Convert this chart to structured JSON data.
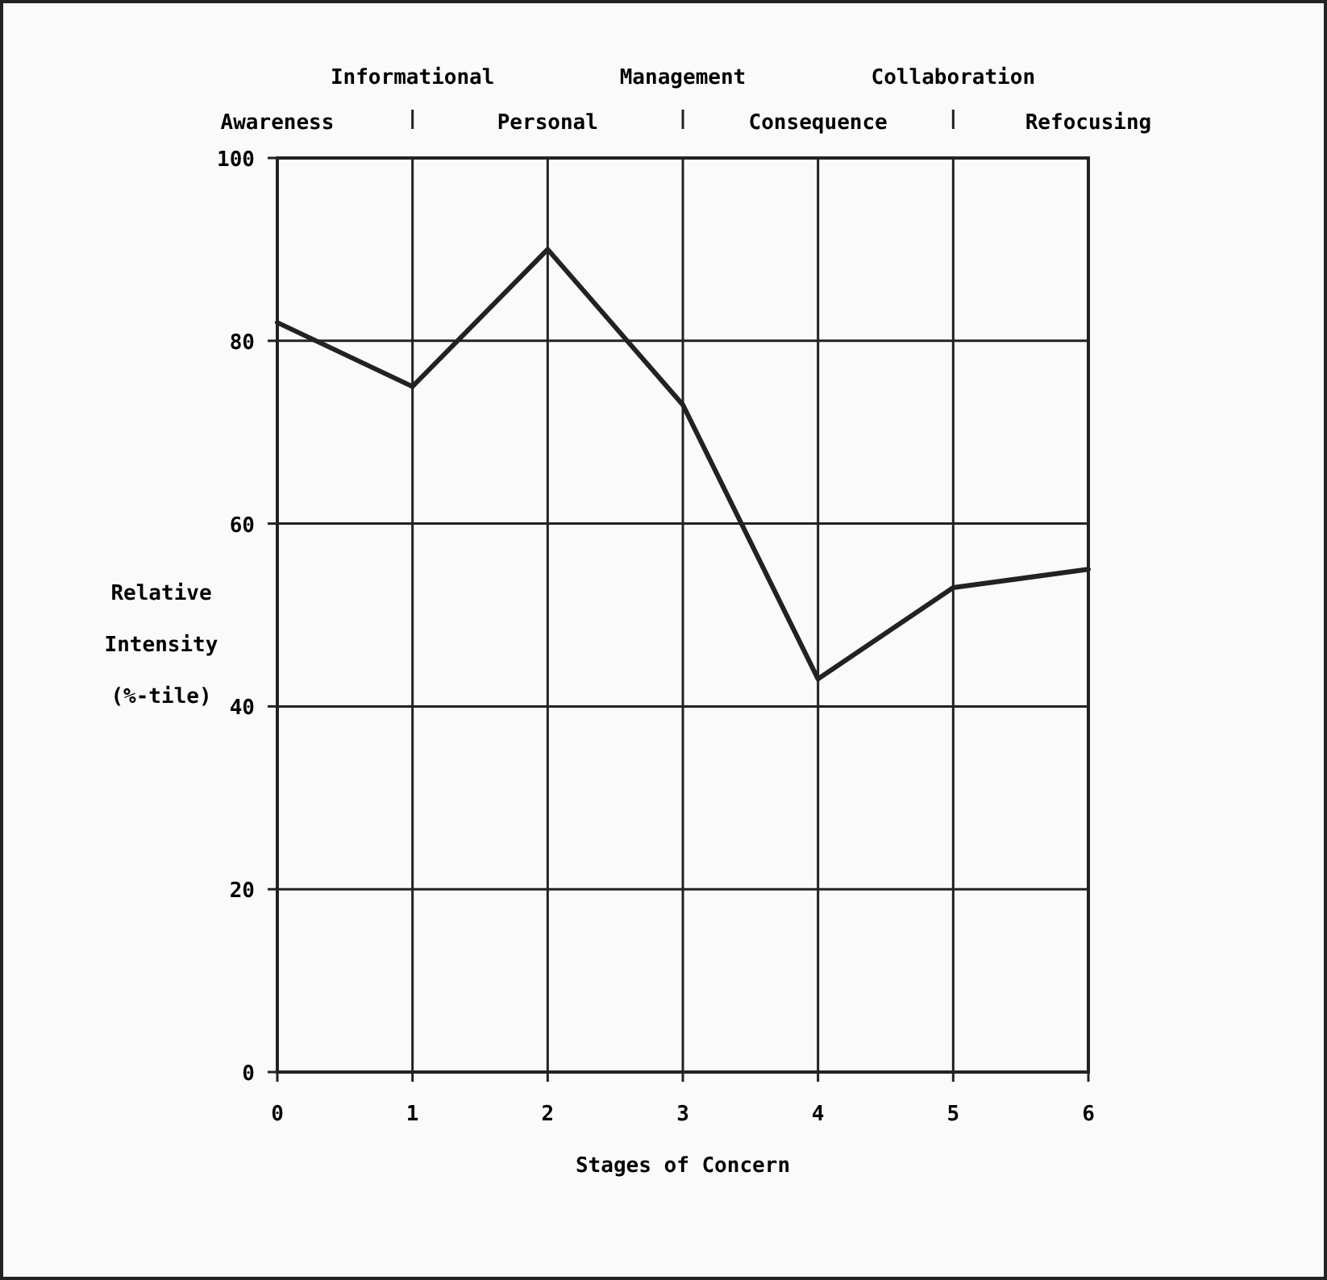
{
  "chart_data": {
    "type": "line",
    "xlabel": "Stages of Concern",
    "ylabel": "Relative Intensity (%-tile)",
    "x": [
      0,
      1,
      2,
      3,
      4,
      5,
      6
    ],
    "series": [
      {
        "color": "#222222",
        "values": [
          82,
          75,
          90,
          73,
          43,
          53,
          55
        ]
      }
    ],
    "xlim": [
      0,
      6
    ],
    "xticks": [
      0,
      1,
      2,
      3,
      4,
      5,
      6
    ],
    "ylim": [
      0,
      100
    ],
    "yticks": [
      0,
      20,
      40,
      60,
      80,
      100
    ],
    "annotations": [
      "Awareness",
      "Informational",
      "Personal",
      "Management",
      "Consequence",
      "Collaboration",
      "Refocusing"
    ],
    "grid": true,
    "marker": "none",
    "line_style": "solid"
  }
}
